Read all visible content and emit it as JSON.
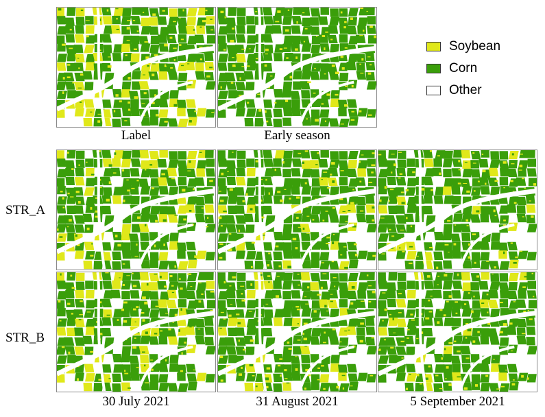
{
  "legend": {
    "items": [
      {
        "label": "Soybean",
        "color": "#e0e81a"
      },
      {
        "label": "Corn",
        "color": "#3a9e0a"
      },
      {
        "label": "Other",
        "color": "#ffffff"
      }
    ]
  },
  "colors": {
    "soybean": "#e0e81a",
    "corn": "#3a9e0a",
    "other": "#ffffff",
    "border": "#8a8a8a"
  },
  "top_row": {
    "captions": [
      "Label",
      "Early season"
    ]
  },
  "rows": [
    "STR_A",
    "STR_B"
  ],
  "columns": [
    "30 July 2021",
    "31 August 2021",
    "5 September 2021"
  ],
  "panels": [
    {
      "id": "label",
      "soy_fraction": 0.42,
      "seed": 11
    },
    {
      "id": "early-season",
      "soy_fraction": 0.12,
      "seed": 23
    },
    {
      "id": "str-a-30-july-2021",
      "soy_fraction": 0.3,
      "seed": 37
    },
    {
      "id": "str-a-31-august-2021",
      "soy_fraction": 0.27,
      "seed": 41
    },
    {
      "id": "str-a-5-september-2021",
      "soy_fraction": 0.22,
      "seed": 53
    },
    {
      "id": "str-b-30-july-2021",
      "soy_fraction": 0.31,
      "seed": 67
    },
    {
      "id": "str-b-31-august-2021",
      "soy_fraction": 0.28,
      "seed": 71
    },
    {
      "id": "str-b-5-september-2021",
      "soy_fraction": 0.24,
      "seed": 83
    }
  ]
}
